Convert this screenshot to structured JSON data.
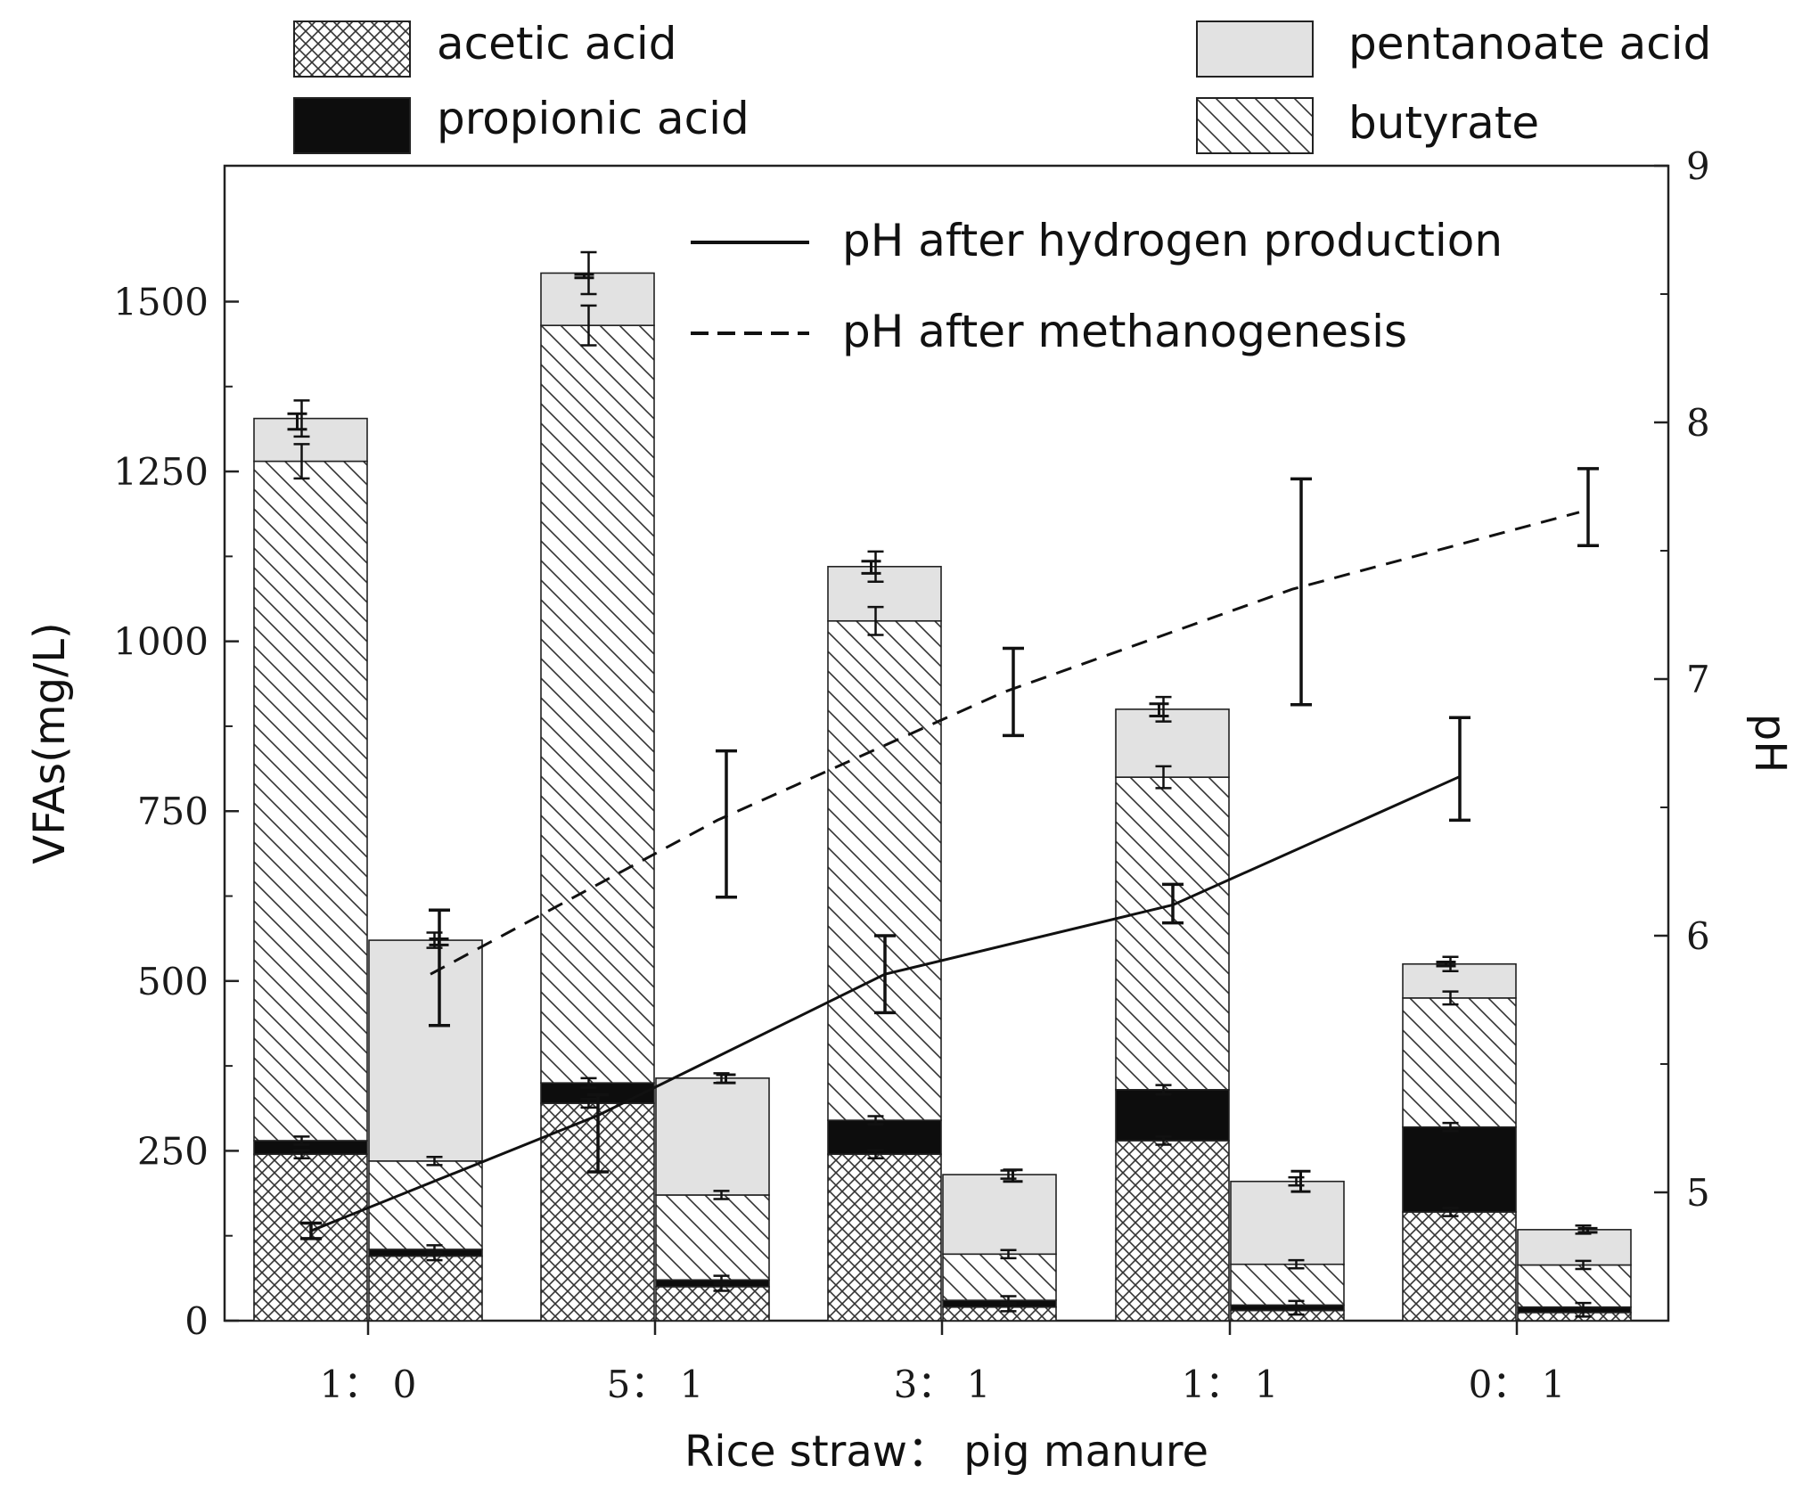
{
  "chart_data": {
    "type": "bar",
    "subtype": "stacked-bar-with-dual-axis-lines",
    "xlabel": "Rice straw： pig manure",
    "ylabel": "VFAs(mg/L)",
    "y2label": "pH",
    "ylim": [
      0,
      1700
    ],
    "y2lim": [
      4.5,
      9
    ],
    "yticks": [
      0,
      250,
      500,
      750,
      1000,
      1250,
      1500
    ],
    "y2ticks": [
      5,
      6,
      7,
      8,
      9
    ],
    "categories": [
      "1： 0",
      "5： 1",
      "3： 1",
      "1： 1",
      "0： 1"
    ],
    "stack_order": [
      "acetic acid",
      "propionic acid",
      "butyrate",
      "pentanoate acid"
    ],
    "legend_items": [
      "acetic acid",
      "propionic acid",
      "pentanoate acid",
      "butyrate"
    ],
    "phases": [
      "after hydrogen production",
      "after methanogenesis"
    ],
    "series": [
      {
        "name": "acetic acid",
        "pattern": "crosshatch",
        "after_hydrogen_production": [
          245,
          320,
          245,
          265,
          160
        ],
        "after_methanogenesis": [
          95,
          50,
          20,
          15,
          12
        ]
      },
      {
        "name": "propionic acid",
        "pattern": "solid-black",
        "after_hydrogen_production": [
          20,
          30,
          50,
          75,
          125
        ],
        "after_methanogenesis": [
          10,
          10,
          10,
          8,
          8
        ]
      },
      {
        "name": "butyrate",
        "pattern": "diagonal-hatch",
        "after_hydrogen_production": [
          1000,
          1115,
          735,
          460,
          190
        ],
        "after_methanogenesis": [
          130,
          125,
          68,
          60,
          62
        ]
      },
      {
        "name": "pentanoate acid",
        "pattern": "light-gray",
        "after_hydrogen_production": [
          63,
          77,
          80,
          100,
          50
        ],
        "after_methanogenesis": [
          325,
          172,
          117,
          122,
          52
        ]
      }
    ],
    "stack_top_errors": {
      "after_hydrogen_production": [
        [
          1312,
          1335
        ],
        [
          1535,
          1540
        ],
        [
          1100,
          1118
        ],
        [
          890,
          908
        ],
        [
          522,
          528
        ]
      ],
      "after_methanogenesis": [
        [
          553,
          562
        ],
        [
          350,
          362
        ],
        [
          205,
          222
        ],
        [
          190,
          220
        ],
        [
          130,
          136
        ]
      ]
    },
    "lines": [
      {
        "name": "pH after hydrogen production",
        "style": "solid",
        "x": [
          "1： 0",
          "5： 1",
          "3： 1",
          "1： 1",
          "0： 1"
        ],
        "y": [
          4.85,
          5.3,
          5.85,
          6.12,
          6.62
        ],
        "err": [
          [
            4.82,
            4.88
          ],
          [
            5.08,
            5.38
          ],
          [
            5.7,
            6.0
          ],
          [
            6.05,
            6.2
          ],
          [
            6.45,
            6.85
          ]
        ]
      },
      {
        "name": "pH after methanogenesis",
        "style": "dashed",
        "x": [
          "1： 0",
          "5： 1",
          "3： 1",
          "1： 1",
          "0： 1"
        ],
        "y": [
          5.85,
          6.45,
          6.95,
          7.35,
          7.65
        ],
        "err": [
          [
            5.65,
            6.1
          ],
          [
            6.15,
            6.72
          ],
          [
            6.78,
            7.12
          ],
          [
            6.9,
            7.78
          ],
          [
            7.52,
            7.82
          ]
        ]
      }
    ]
  }
}
